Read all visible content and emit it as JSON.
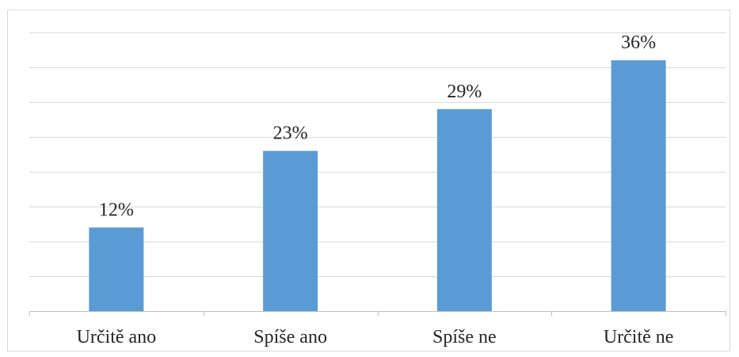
{
  "chart_data": {
    "type": "bar",
    "categories": [
      "Určitě ano",
      "Spíše ano",
      "Spíše ne",
      "Určitě ne"
    ],
    "values": [
      12,
      23,
      29,
      36
    ],
    "data_labels": [
      "12%",
      "23%",
      "29%",
      "36%"
    ],
    "unit": "%",
    "title": "",
    "xlabel": "",
    "ylabel": "",
    "ylim": [
      0,
      40
    ],
    "grid": true,
    "legend": "none",
    "bar_color": "#5b9bd5"
  }
}
